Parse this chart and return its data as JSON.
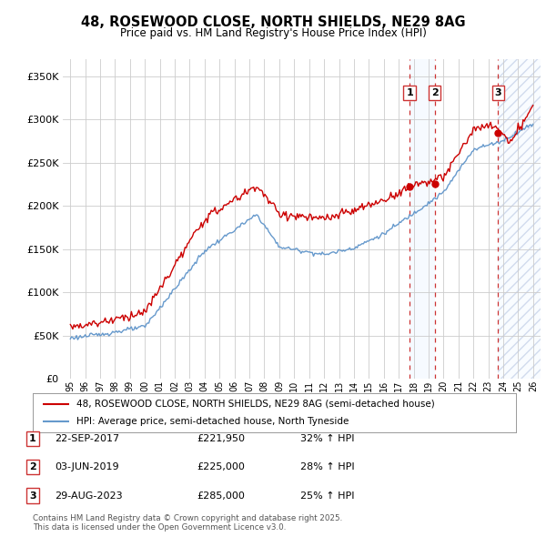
{
  "title": "48, ROSEWOOD CLOSE, NORTH SHIELDS, NE29 8AG",
  "subtitle": "Price paid vs. HM Land Registry's House Price Index (HPI)",
  "legend_line1": "48, ROSEWOOD CLOSE, NORTH SHIELDS, NE29 8AG (semi-detached house)",
  "legend_line2": "HPI: Average price, semi-detached house, North Tyneside",
  "footnote": "Contains HM Land Registry data © Crown copyright and database right 2025.\nThis data is licensed under the Open Government Licence v3.0.",
  "sales": [
    {
      "num": 1,
      "date": "22-SEP-2017",
      "price": "£221,950",
      "hpi": "32% ↑ HPI",
      "x_year": 2017.73,
      "y_val": 221950
    },
    {
      "num": 2,
      "date": "03-JUN-2019",
      "price": "£225,000",
      "hpi": "28% ↑ HPI",
      "x_year": 2019.42,
      "y_val": 225000
    },
    {
      "num": 3,
      "date": "29-AUG-2023",
      "price": "£285,000",
      "hpi": "25% ↑ HPI",
      "x_year": 2023.66,
      "y_val": 285000
    }
  ],
  "ylim": [
    0,
    370000
  ],
  "yticks": [
    0,
    50000,
    100000,
    150000,
    200000,
    250000,
    300000,
    350000
  ],
  "xlim": [
    1994.5,
    2026.5
  ],
  "plot_color_red": "#cc0000",
  "plot_color_blue": "#6699cc",
  "shade_color": "#ddeeff",
  "vline_color": "#cc3333",
  "background_color": "#ffffff",
  "grid_color": "#cccccc",
  "hatch_color": "#ccddee"
}
